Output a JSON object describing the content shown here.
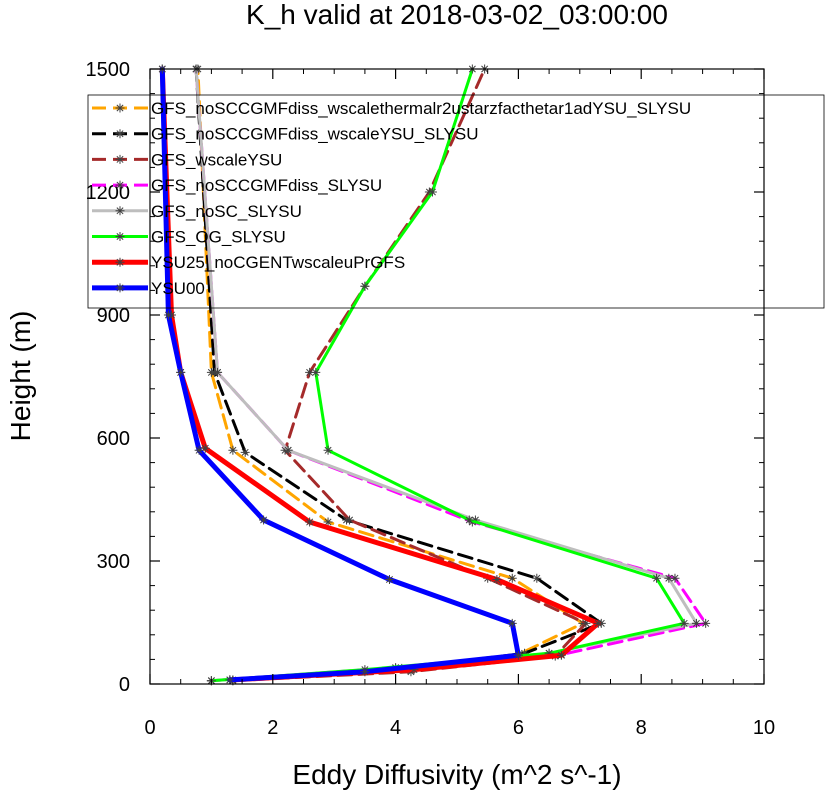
{
  "chart_data": {
    "type": "line",
    "title": "K_h valid at 2018-03-02_03:00:00",
    "xlabel": "Eddy Diffusivity (m^2 s^-1)",
    "ylabel": "Height (m)",
    "xlim": [
      0,
      10
    ],
    "ylim": [
      0,
      1500
    ],
    "xticks": [
      0,
      2,
      4,
      6,
      8,
      10
    ],
    "xtick_labels": [
      "0",
      "2",
      "4",
      "6",
      "8",
      "10"
    ],
    "yticks": [
      0,
      300,
      600,
      900,
      1200,
      1500
    ],
    "ytick_labels": [
      "0",
      "300",
      "600",
      "900",
      "1200",
      "1500"
    ],
    "grid": false,
    "legend_position": "top-left",
    "series": [
      {
        "name": "GFS_noSCCGMFdiss_wscalethermalr2ustarzfacthetar1adYSU_SLYSU",
        "color": "#ffa500",
        "dash": "dashed",
        "width": 3,
        "points": [
          [
            1.35,
            8
          ],
          [
            4.2,
            35
          ],
          [
            6.0,
            72
          ],
          [
            7.05,
            148
          ],
          [
            5.9,
            258
          ],
          [
            2.9,
            395
          ],
          [
            1.35,
            570
          ],
          [
            1.0,
            760
          ],
          [
            0.78,
            1500
          ]
        ]
      },
      {
        "name": "GFS_noSCCGMFdiss_wscaleYSU_SLYSU",
        "color": "#000000",
        "dash": "dashed",
        "width": 3,
        "points": [
          [
            1.3,
            10
          ],
          [
            4.1,
            38
          ],
          [
            6.1,
            75
          ],
          [
            7.35,
            148
          ],
          [
            6.3,
            258
          ],
          [
            3.2,
            400
          ],
          [
            1.55,
            565
          ],
          [
            1.05,
            760
          ],
          [
            0.75,
            1500
          ]
        ]
      },
      {
        "name": "GFS_wscaleYSU",
        "color": "#a52a2a",
        "dash": "dashed",
        "width": 3,
        "points": [
          [
            1.35,
            8
          ],
          [
            4.25,
            30
          ],
          [
            6.6,
            68
          ],
          [
            7.1,
            148
          ],
          [
            5.5,
            258
          ],
          [
            3.25,
            400
          ],
          [
            2.2,
            570
          ],
          [
            2.6,
            760
          ],
          [
            3.5,
            970
          ],
          [
            4.55,
            1200
          ],
          [
            5.45,
            1500
          ]
        ]
      },
      {
        "name": "GFS_noSCCGMFdiss_SLYSU",
        "color": "#ff00ff",
        "dash": "dashed",
        "width": 3,
        "points": [
          [
            1.0,
            8
          ],
          [
            4.0,
            40
          ],
          [
            6.7,
            72
          ],
          [
            9.05,
            148
          ],
          [
            8.55,
            258
          ],
          [
            5.25,
            395
          ],
          [
            2.25,
            570
          ],
          [
            1.1,
            760
          ],
          [
            0.75,
            1500
          ]
        ]
      },
      {
        "name": "GFS_noSC_SLYSU",
        "color": "#bebebe",
        "dash": "solid",
        "width": 3,
        "points": [
          [
            1.0,
            8
          ],
          [
            4.0,
            38
          ],
          [
            6.5,
            75
          ],
          [
            8.9,
            148
          ],
          [
            8.45,
            258
          ],
          [
            5.3,
            400
          ],
          [
            2.25,
            570
          ],
          [
            1.1,
            760
          ],
          [
            0.75,
            1500
          ]
        ]
      },
      {
        "name": "GFS_OG_SLYSU",
        "color": "#00ff00",
        "dash": "solid",
        "width": 3,
        "points": [
          [
            1.0,
            8
          ],
          [
            3.5,
            35
          ],
          [
            6.5,
            75
          ],
          [
            8.7,
            148
          ],
          [
            8.25,
            258
          ],
          [
            5.2,
            400
          ],
          [
            2.9,
            570
          ],
          [
            2.7,
            760
          ],
          [
            3.5,
            970
          ],
          [
            4.6,
            1200
          ],
          [
            5.25,
            1500
          ]
        ]
      },
      {
        "name": "YSU25_noCGENTwscaleuPrGFS",
        "color": "#ff0000",
        "dash": "solid",
        "width": 5,
        "points": [
          [
            1.35,
            10
          ],
          [
            4.3,
            35
          ],
          [
            6.7,
            70
          ],
          [
            7.3,
            148
          ],
          [
            5.65,
            255
          ],
          [
            2.6,
            395
          ],
          [
            0.9,
            575
          ],
          [
            0.5,
            760
          ],
          [
            0.35,
            900
          ],
          [
            0.2,
            1500
          ]
        ]
      },
      {
        "name": "YSU00",
        "color": "#0000ff",
        "dash": "solid",
        "width": 5,
        "points": [
          [
            1.3,
            10
          ],
          [
            3.5,
            30
          ],
          [
            6.0,
            70
          ],
          [
            5.9,
            148
          ],
          [
            3.9,
            255
          ],
          [
            1.85,
            400
          ],
          [
            0.8,
            570
          ],
          [
            0.5,
            760
          ],
          [
            0.3,
            900
          ],
          [
            0.2,
            1500
          ]
        ]
      }
    ]
  }
}
